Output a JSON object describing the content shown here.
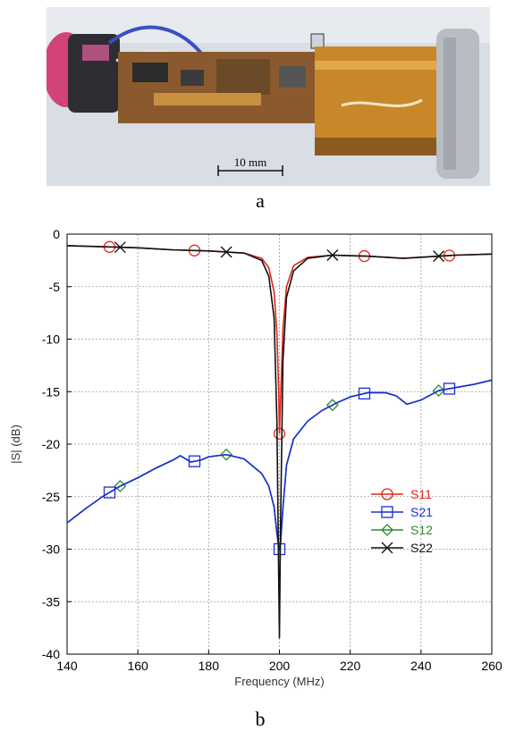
{
  "photo": {
    "panel_label": "a",
    "scale_bar_label": "10 mm"
  },
  "plot_panel_label": "b",
  "colors": {
    "S11": "#e0261a",
    "S21": "#1a2fd6",
    "S12": "#2e8a2e",
    "S22": "#111111"
  },
  "chart_data": {
    "type": "line",
    "xlabel": "Frequency (MHz)",
    "ylabel": "|S| (dB)",
    "xlim": [
      140,
      260
    ],
    "ylim": [
      -40,
      0
    ],
    "xticks": [
      140,
      160,
      180,
      200,
      220,
      240,
      260
    ],
    "yticks": [
      0,
      -5,
      -10,
      -15,
      -20,
      -25,
      -30,
      -35,
      -40
    ],
    "grid": true,
    "legend_position": "lower-right",
    "series": [
      {
        "name": "S11",
        "marker": "circle",
        "x": [
          140,
          150,
          160,
          170,
          180,
          190,
          195,
          197,
          198.5,
          199.3,
          199.8,
          200,
          200.3,
          201,
          202,
          204,
          208,
          215,
          225,
          235,
          245,
          250,
          260
        ],
        "y": [
          -1.1,
          -1.2,
          -1.3,
          -1.5,
          -1.6,
          -1.8,
          -2.3,
          -3.2,
          -5.5,
          -9.5,
          -15,
          -19,
          -16,
          -9,
          -5,
          -3,
          -2.2,
          -2,
          -2.1,
          -2.3,
          -2.1,
          -2,
          -1.9
        ],
        "marker_x": [
          152,
          176,
          200,
          224,
          248
        ]
      },
      {
        "name": "S21",
        "marker": "square",
        "x": [
          140,
          145,
          150,
          155,
          160,
          165,
          170,
          172,
          175,
          178,
          180,
          185,
          190,
          195,
          197,
          198.5,
          199.3,
          199.8,
          200,
          200.3,
          201,
          202,
          204,
          208,
          212,
          216,
          220,
          225,
          230,
          233,
          236,
          240,
          245,
          250,
          255,
          260
        ],
        "y": [
          -27.5,
          -26.2,
          -25,
          -24,
          -23.2,
          -22.3,
          -21.5,
          -21.1,
          -21.7,
          -21.5,
          -21.2,
          -21,
          -21.4,
          -22.8,
          -24,
          -26,
          -28.5,
          -29.8,
          -30,
          -29.5,
          -26,
          -22,
          -19.5,
          -17.8,
          -16.8,
          -16.1,
          -15.5,
          -15.1,
          -15.1,
          -15.4,
          -16.2,
          -15.8,
          -14.9,
          -14.6,
          -14.3,
          -13.9
        ],
        "marker_x": [
          152,
          176,
          200,
          224,
          248
        ]
      },
      {
        "name": "S12",
        "marker": "diamond",
        "x": [
          140,
          145,
          150,
          155,
          160,
          165,
          170,
          172,
          175,
          178,
          180,
          185,
          190,
          195,
          197,
          198.5,
          199.3,
          199.8,
          200,
          200.3,
          201,
          202,
          204,
          208,
          212,
          216,
          220,
          225,
          230,
          233,
          236,
          240,
          245,
          250,
          255,
          260
        ],
        "y": [
          -27.5,
          -26.2,
          -25,
          -24,
          -23.2,
          -22.3,
          -21.5,
          -21.1,
          -21.7,
          -21.5,
          -21.2,
          -21,
          -21.4,
          -22.8,
          -24,
          -26,
          -28.5,
          -29.8,
          -30,
          -29.5,
          -26,
          -22,
          -19.5,
          -17.8,
          -16.8,
          -16.1,
          -15.5,
          -15.1,
          -15.1,
          -15.4,
          -16.2,
          -15.8,
          -14.9,
          -14.6,
          -14.3,
          -13.9
        ],
        "marker_x": [
          155,
          185,
          215,
          245
        ]
      },
      {
        "name": "S22",
        "marker": "cross",
        "x": [
          140,
          150,
          160,
          170,
          180,
          190,
          195,
          197,
          198.5,
          199.3,
          199.7,
          200,
          200.3,
          201,
          202,
          204,
          208,
          215,
          225,
          235,
          245,
          250,
          260
        ],
        "y": [
          -1.1,
          -1.2,
          -1.3,
          -1.5,
          -1.6,
          -1.8,
          -2.5,
          -4,
          -8,
          -18,
          -30,
          -38.5,
          -28,
          -12,
          -6,
          -3.5,
          -2.3,
          -2,
          -2.1,
          -2.3,
          -2.1,
          -2,
          -1.9
        ],
        "marker_x": [
          155,
          185,
          215,
          245
        ]
      }
    ]
  }
}
